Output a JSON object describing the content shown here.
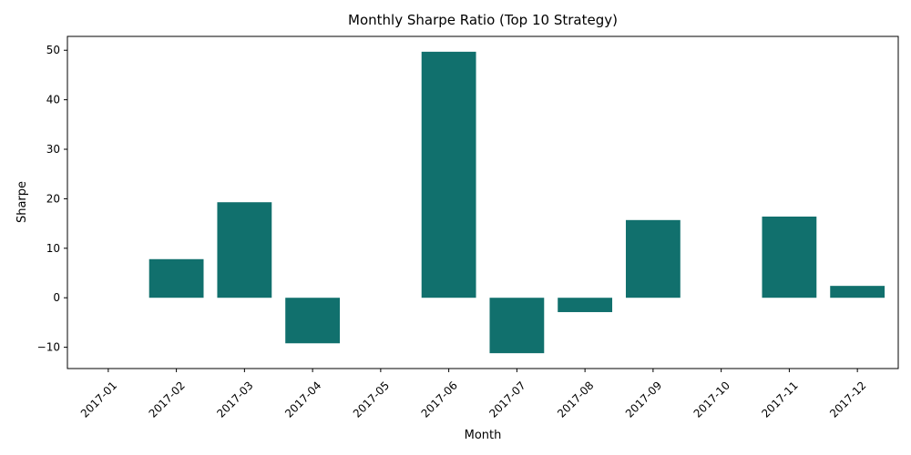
{
  "chart_data": {
    "type": "bar",
    "title": "Monthly Sharpe Ratio (Top 10 Strategy)",
    "xlabel": "Month",
    "ylabel": "Sharpe",
    "categories": [
      "2017-01",
      "2017-02",
      "2017-03",
      "2017-04",
      "2017-05",
      "2017-06",
      "2017-07",
      "2017-08",
      "2017-09",
      "2017-10",
      "2017-11",
      "2017-12"
    ],
    "values": [
      0,
      7.8,
      19.3,
      -9.2,
      0,
      49.7,
      -11.2,
      -2.9,
      15.7,
      0,
      16.4,
      2.4
    ],
    "yticks": [
      -10,
      0,
      10,
      20,
      30,
      40,
      50
    ],
    "ylim": [
      -14.3,
      52.8
    ],
    "grid": false,
    "bar_color": "#11706d"
  }
}
